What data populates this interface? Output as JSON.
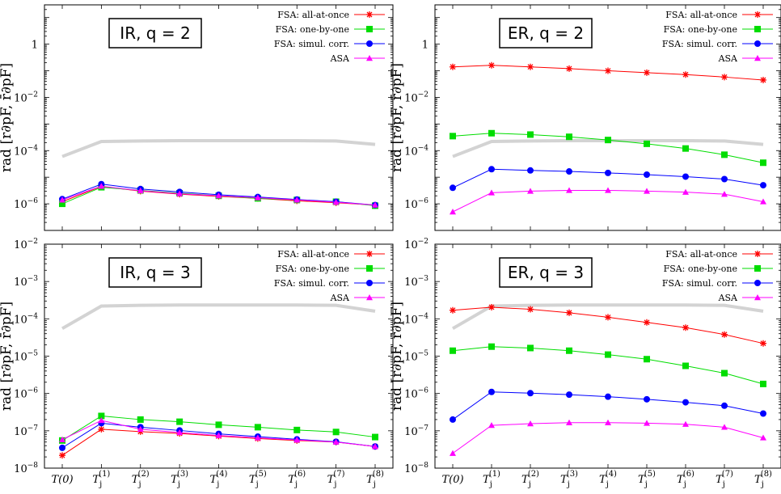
{
  "figure": {
    "ylabel": "rad [r∂pF, r̄∂pF]"
  },
  "chart_data": [
    {
      "type": "line",
      "title": "IR, q = 2",
      "yscale": "log",
      "ylim": [
        1e-07,
        30
      ],
      "yticks": [
        1e-06,
        0.0001,
        0.01,
        1
      ],
      "x": [
        "T(0)",
        "Tj(1)",
        "Tj(2)",
        "Tj(3)",
        "Tj(4)",
        "Tj(5)",
        "Tj(6)",
        "Tj(7)",
        "Tj(8)"
      ],
      "legend_position": "top-right",
      "series": [
        {
          "name": "FSA: all-at-once",
          "color": "#ff0000",
          "marker": "star",
          "values": [
            1.2e-06,
            4.5e-06,
            3e-06,
            2.3e-06,
            1.9e-06,
            1.6e-06,
            1.3e-06,
            1.1e-06,
            9e-07
          ]
        },
        {
          "name": "FSA: one-by-one",
          "color": "#00dd00",
          "marker": "square",
          "values": [
            1e-06,
            4.2e-06,
            3.2e-06,
            2.5e-06,
            2e-06,
            1.6e-06,
            1.4e-06,
            1.2e-06,
            8.5e-07
          ]
        },
        {
          "name": "FSA: simul. corr.",
          "color": "#0000ff",
          "marker": "circle",
          "values": [
            1.5e-06,
            5.5e-06,
            3.6e-06,
            2.8e-06,
            2.2e-06,
            1.8e-06,
            1.45e-06,
            1.2e-06,
            9e-07
          ]
        },
        {
          "name": "ASA",
          "color": "#ff00ff",
          "marker": "triangle",
          "values": [
            1.4e-06,
            4.6e-06,
            3.1e-06,
            2.4e-06,
            2e-06,
            1.7e-06,
            1.4e-06,
            1.15e-06,
            9e-07
          ]
        }
      ],
      "reference": {
        "color": "#d3d3d3",
        "values": [
          6e-05,
          0.00022,
          0.00023,
          0.000235,
          0.000235,
          0.000235,
          0.000235,
          0.00023,
          0.00017
        ]
      }
    },
    {
      "type": "line",
      "title": "ER, q = 2",
      "yscale": "log",
      "ylim": [
        1e-07,
        30
      ],
      "yticks": [
        1e-06,
        0.0001,
        0.01,
        1
      ],
      "x": [
        "T(0)",
        "Tj(1)",
        "Tj(2)",
        "Tj(3)",
        "Tj(4)",
        "Tj(5)",
        "Tj(6)",
        "Tj(7)",
        "Tj(8)"
      ],
      "legend_position": "top-right",
      "series": [
        {
          "name": "FSA: all-at-once",
          "color": "#ff0000",
          "marker": "star",
          "values": [
            0.14,
            0.16,
            0.14,
            0.12,
            0.1,
            0.085,
            0.072,
            0.058,
            0.045
          ]
        },
        {
          "name": "FSA: one-by-one",
          "color": "#00dd00",
          "marker": "square",
          "values": [
            0.00035,
            0.00045,
            0.0004,
            0.00033,
            0.00025,
            0.00018,
            0.00012,
            7e-05,
            3.5e-05
          ]
        },
        {
          "name": "FSA: simul. corr.",
          "color": "#0000ff",
          "marker": "circle",
          "values": [
            4e-06,
            2e-05,
            1.8e-05,
            1.65e-05,
            1.45e-05,
            1.25e-05,
            1.05e-05,
            8.5e-06,
            5e-06
          ]
        },
        {
          "name": "ASA",
          "color": "#ff00ff",
          "marker": "triangle",
          "values": [
            5e-07,
            2.6e-06,
            3e-06,
            3.2e-06,
            3.2e-06,
            3e-06,
            2.75e-06,
            2.3e-06,
            1.2e-06
          ]
        }
      ],
      "reference": {
        "color": "#d3d3d3",
        "values": [
          6e-05,
          0.00022,
          0.00023,
          0.000235,
          0.000235,
          0.000235,
          0.000235,
          0.00023,
          0.00017
        ]
      }
    },
    {
      "type": "line",
      "title": "IR, q = 3",
      "yscale": "log",
      "ylim": [
        1e-08,
        0.01
      ],
      "yticks": [
        1e-08,
        1e-07,
        1e-06,
        1e-05,
        0.0001,
        0.001,
        0.01
      ],
      "x": [
        "T(0)",
        "Tj(1)",
        "Tj(2)",
        "Tj(3)",
        "Tj(4)",
        "Tj(5)",
        "Tj(6)",
        "Tj(7)",
        "Tj(8)"
      ],
      "legend_position": "top-right",
      "series": [
        {
          "name": "FSA: all-at-once",
          "color": "#ff0000",
          "marker": "star",
          "values": [
            2.2e-08,
            1.1e-07,
            9.5e-08,
            8.5e-08,
            7.2e-08,
            6.2e-08,
            5.5e-08,
            5e-08,
            3.8e-08
          ]
        },
        {
          "name": "FSA: one-by-one",
          "color": "#00dd00",
          "marker": "square",
          "values": [
            5.5e-08,
            2.5e-07,
            2e-07,
            1.75e-07,
            1.45e-07,
            1.25e-07,
            1.05e-07,
            9.3e-08,
            6.8e-08
          ]
        },
        {
          "name": "FSA: simul. corr.",
          "color": "#0000ff",
          "marker": "circle",
          "values": [
            3.5e-08,
            1.6e-07,
            1.25e-07,
            1.02e-07,
            8.3e-08,
            7e-08,
            5.9e-08,
            5.1e-08,
            3.8e-08
          ]
        },
        {
          "name": "ASA",
          "color": "#ff00ff",
          "marker": "triangle",
          "values": [
            5.8e-08,
            1.9e-07,
            1.1e-07,
            9e-08,
            7.5e-08,
            6.5e-08,
            5.7e-08,
            5e-08,
            3.8e-08
          ]
        }
      ],
      "reference": {
        "color": "#d3d3d3",
        "values": [
          5.5e-05,
          0.00022,
          0.00023,
          0.000235,
          0.000235,
          0.000235,
          0.000235,
          0.00023,
          0.00016
        ]
      }
    },
    {
      "type": "line",
      "title": "ER, q = 3",
      "yscale": "log",
      "ylim": [
        1e-08,
        0.01
      ],
      "yticks": [
        1e-08,
        1e-07,
        1e-06,
        1e-05,
        0.0001,
        0.001,
        0.01
      ],
      "x": [
        "T(0)",
        "Tj(1)",
        "Tj(2)",
        "Tj(3)",
        "Tj(4)",
        "Tj(5)",
        "Tj(6)",
        "Tj(7)",
        "Tj(8)"
      ],
      "legend_position": "top-right",
      "series": [
        {
          "name": "FSA: all-at-once",
          "color": "#ff0000",
          "marker": "star",
          "values": [
            0.00017,
            0.000205,
            0.00018,
            0.000145,
            0.00011,
            8e-05,
            5.8e-05,
            3.8e-05,
            2.2e-05
          ]
        },
        {
          "name": "FSA: one-by-one",
          "color": "#00dd00",
          "marker": "square",
          "values": [
            1.4e-05,
            1.8e-05,
            1.65e-05,
            1.4e-05,
            1.1e-05,
            8.3e-06,
            5.5e-06,
            3.5e-06,
            1.8e-06
          ]
        },
        {
          "name": "FSA: simul. corr.",
          "color": "#0000ff",
          "marker": "circle",
          "values": [
            2e-07,
            1.1e-06,
            1.02e-06,
            9.3e-07,
            8.2e-07,
            7e-07,
            5.8e-07,
            4.7e-07,
            2.9e-07
          ]
        },
        {
          "name": "ASA",
          "color": "#ff00ff",
          "marker": "triangle",
          "values": [
            2.5e-08,
            1.4e-07,
            1.55e-07,
            1.65e-07,
            1.65e-07,
            1.6e-07,
            1.5e-07,
            1.25e-07,
            6.5e-08
          ]
        }
      ],
      "reference": {
        "color": "#d3d3d3",
        "values": [
          5.5e-05,
          0.00022,
          0.00023,
          0.000235,
          0.000235,
          0.000235,
          0.000235,
          0.00023,
          0.00016
        ]
      }
    }
  ]
}
